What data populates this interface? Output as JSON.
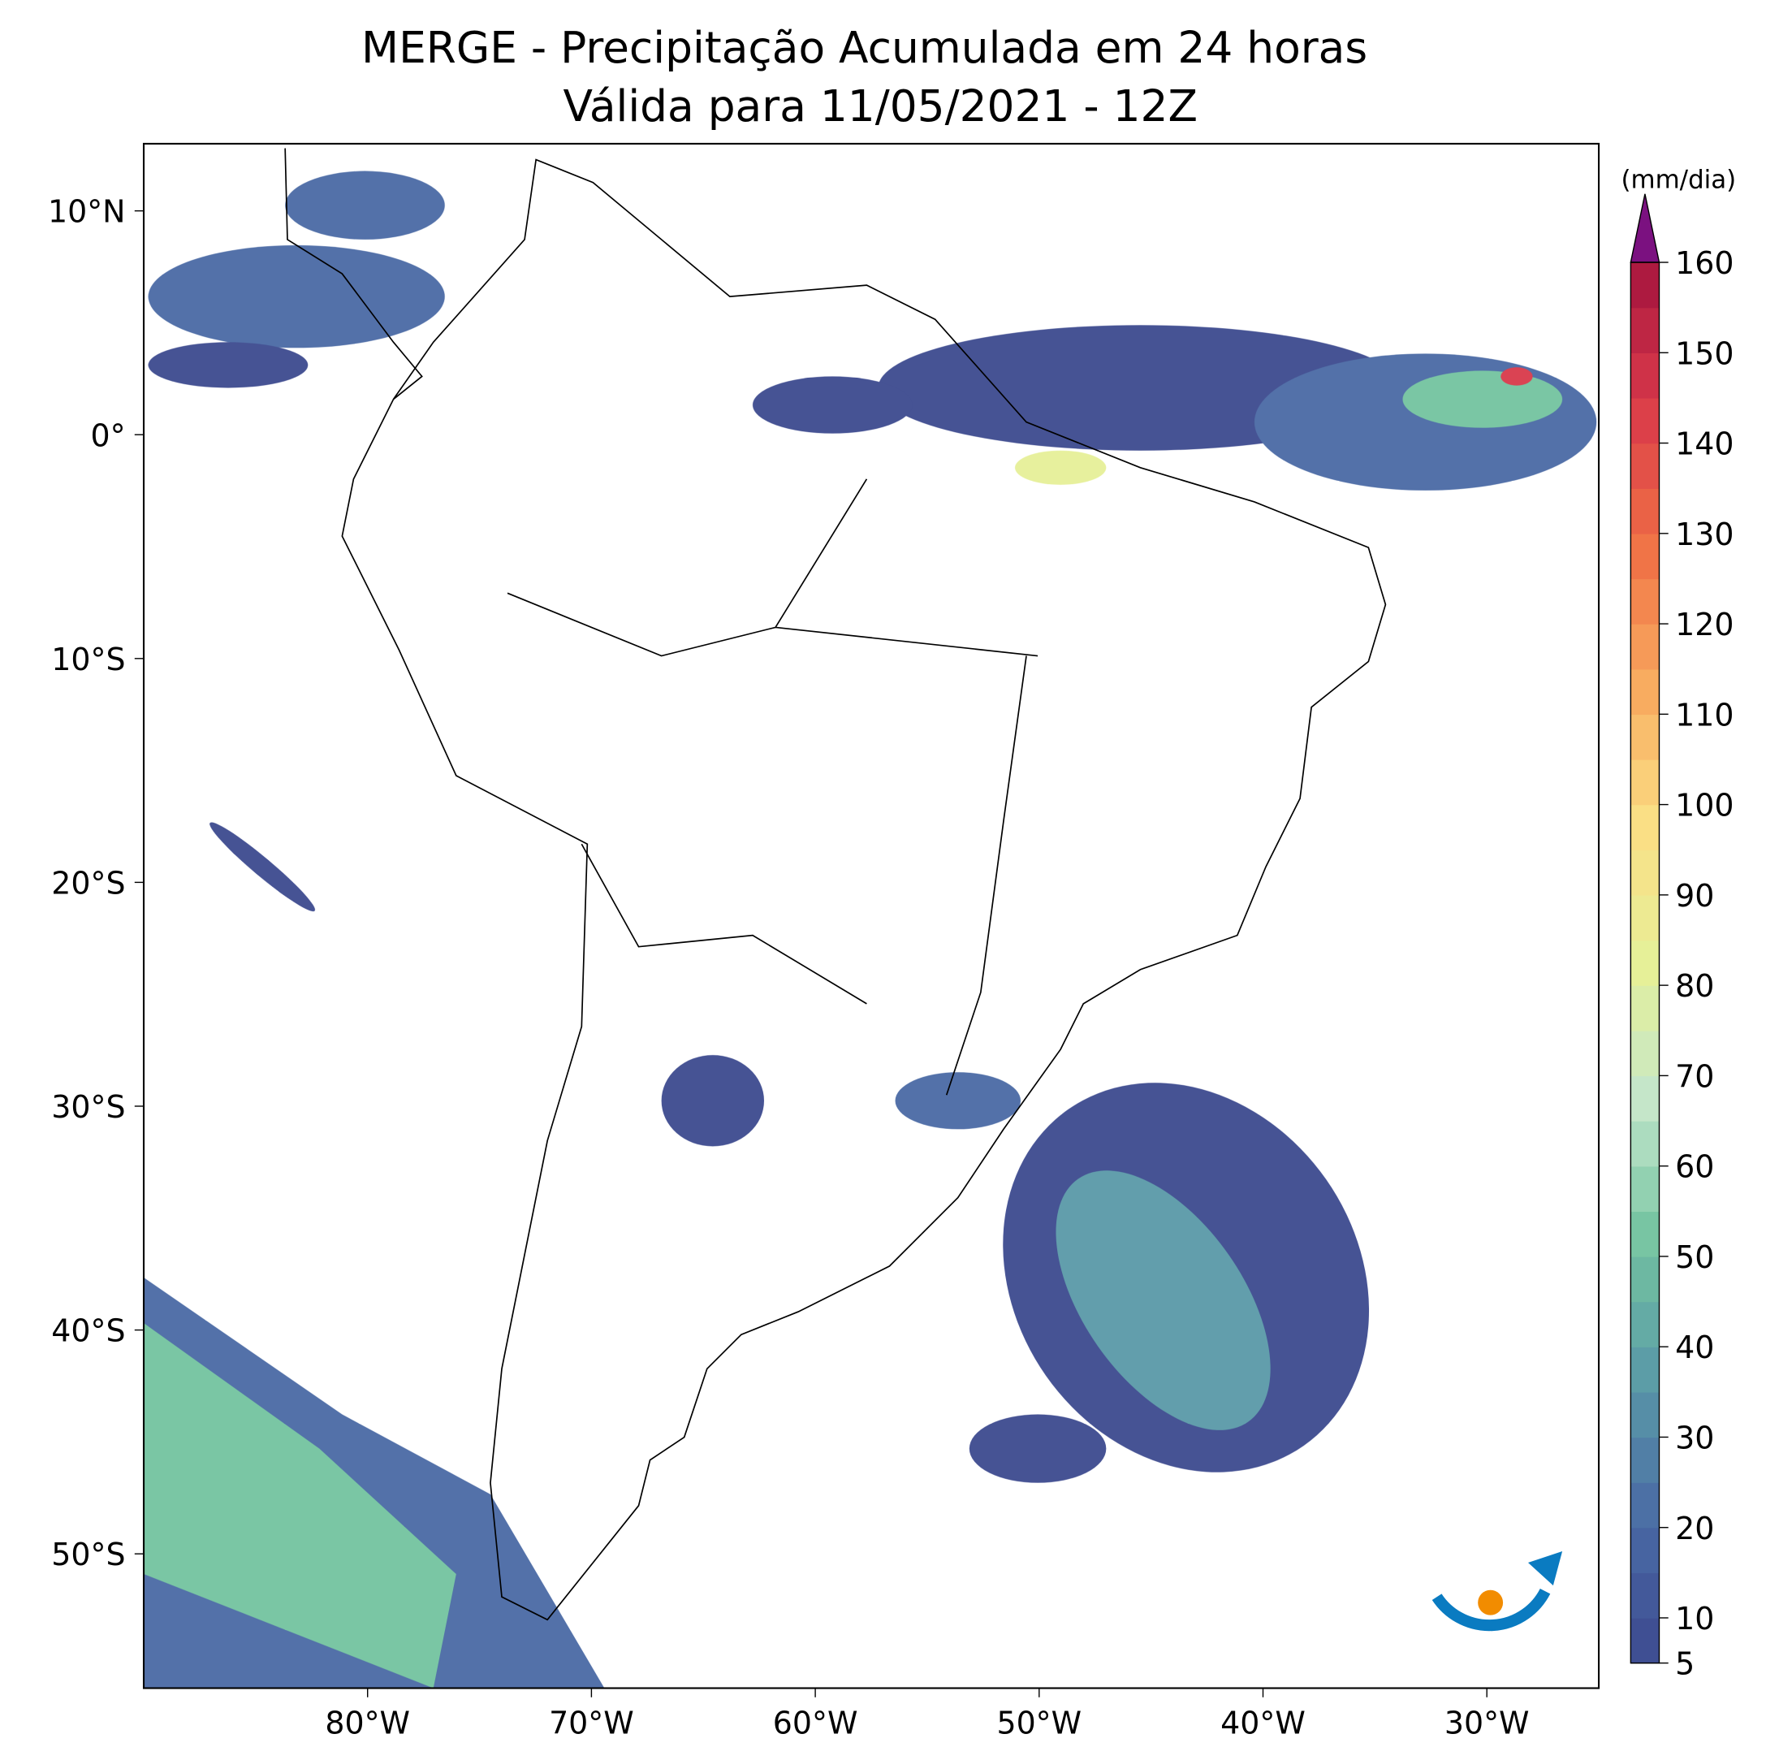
{
  "title": [
    "MERGE - Precipitação Acumulada em 24 horas",
    "Válida para 11/05/2021 - 12Z"
  ],
  "map": {
    "xlim": [
      -90,
      -25
    ],
    "ylim": [
      -56,
      13
    ],
    "xticks": [
      {
        "value": -80,
        "label": "80°W"
      },
      {
        "value": -70,
        "label": "70°W"
      },
      {
        "value": -60,
        "label": "60°W"
      },
      {
        "value": -50,
        "label": "50°W"
      },
      {
        "value": -40,
        "label": "40°W"
      },
      {
        "value": -30,
        "label": "30°W"
      }
    ],
    "yticks": [
      {
        "value": 10,
        "label": "10°N"
      },
      {
        "value": 0,
        "label": "0°"
      },
      {
        "value": -10,
        "label": "10°S"
      },
      {
        "value": -20,
        "label": "20°S"
      },
      {
        "value": -30,
        "label": "30°S"
      },
      {
        "value": -40,
        "label": "40°S"
      },
      {
        "value": -50,
        "label": "50°S"
      }
    ]
  },
  "colorbar": {
    "label": "(mm/dia)",
    "ticks": [
      5,
      10,
      20,
      30,
      40,
      50,
      60,
      70,
      80,
      90,
      100,
      110,
      120,
      130,
      140,
      150,
      160
    ],
    "colors": [
      "#3d4a8f",
      "#4a6aa5",
      "#5a99a8",
      "#73c3a0",
      "#c4e6cb",
      "#e6f098",
      "#fbde84",
      "#f8a95e",
      "#ef6e45",
      "#d9394a",
      "#a5143e"
    ],
    "extend_color": "#7b1180"
  }
}
